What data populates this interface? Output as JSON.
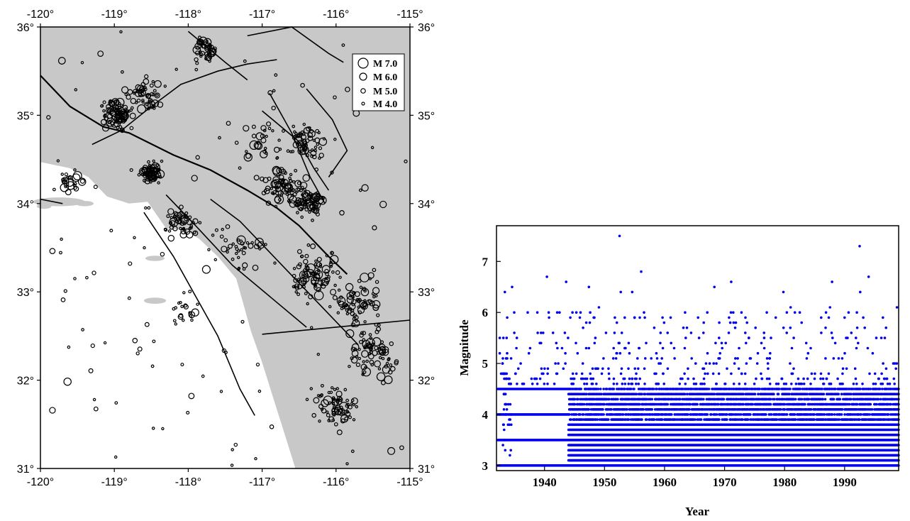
{
  "chart_data": [
    {
      "type": "scatter",
      "kind": "epicenter-map",
      "x_ticks": [
        "-120°",
        "-119°",
        "-118°",
        "-117°",
        "-116°",
        "-115°"
      ],
      "y_ticks": [
        "31°",
        "32°",
        "33°",
        "34°",
        "35°",
        "36°"
      ],
      "xlim": [
        -120,
        -115
      ],
      "ylim": [
        31,
        36
      ],
      "background": {
        "land": "#c8c8c8",
        "sea": "#ffffff"
      },
      "legend": {
        "placement": "top-right",
        "entries": [
          {
            "label": "M 7.0",
            "magnitude": 7.0
          },
          {
            "label": "M 6.0",
            "magnitude": 6.0
          },
          {
            "label": "M 5.0",
            "magnitude": 5.0
          },
          {
            "label": "M 4.0",
            "magnitude": 4.0
          }
        ]
      },
      "clusters": [
        {
          "lon": -118.95,
          "lat": 35.0,
          "n": 90,
          "spread": 0.18
        },
        {
          "lon": -118.6,
          "lat": 35.25,
          "n": 50,
          "spread": 0.18
        },
        {
          "lon": -117.75,
          "lat": 35.75,
          "n": 45,
          "spread": 0.15
        },
        {
          "lon": -118.5,
          "lat": 34.35,
          "n": 70,
          "spread": 0.12
        },
        {
          "lon": -116.75,
          "lat": 34.2,
          "n": 80,
          "spread": 0.25
        },
        {
          "lon": -116.4,
          "lat": 34.0,
          "n": 70,
          "spread": 0.18
        },
        {
          "lon": -116.4,
          "lat": 34.7,
          "n": 60,
          "spread": 0.22
        },
        {
          "lon": -116.3,
          "lat": 33.2,
          "n": 90,
          "spread": 0.3
        },
        {
          "lon": -115.7,
          "lat": 32.9,
          "n": 70,
          "spread": 0.25
        },
        {
          "lon": -115.5,
          "lat": 32.3,
          "n": 80,
          "spread": 0.3
        },
        {
          "lon": -116.0,
          "lat": 31.7,
          "n": 70,
          "spread": 0.25
        },
        {
          "lon": -118.1,
          "lat": 33.8,
          "n": 50,
          "spread": 0.2
        },
        {
          "lon": -117.4,
          "lat": 33.5,
          "n": 40,
          "spread": 0.3
        },
        {
          "lon": -119.6,
          "lat": 34.25,
          "n": 25,
          "spread": 0.15
        },
        {
          "lon": -117.0,
          "lat": 34.7,
          "n": 30,
          "spread": 0.3
        },
        {
          "lon": -118.0,
          "lat": 32.8,
          "n": 20,
          "spread": 0.2
        }
      ]
    },
    {
      "type": "scatter",
      "kind": "magnitude-time",
      "xlabel": "Year",
      "ylabel": "Magnitude",
      "x_ticks": [
        "1940",
        "1950",
        "1960",
        "1970",
        "1980",
        "1990"
      ],
      "y_ticks": [
        "3",
        "4",
        "5",
        "6",
        "7"
      ],
      "xlim": [
        1932,
        1999
      ],
      "ylim": [
        2.9,
        7.7
      ],
      "marker_color": "#0000ee",
      "large_events": [
        {
          "year": 1952.5,
          "mag": 7.5
        },
        {
          "year": 1992.5,
          "mag": 7.3
        },
        {
          "year": 1956.1,
          "mag": 6.8
        },
        {
          "year": 1940.4,
          "mag": 6.7
        },
        {
          "year": 1994.0,
          "mag": 6.7
        },
        {
          "year": 1971.1,
          "mag": 6.6
        },
        {
          "year": 1987.9,
          "mag": 6.6
        },
        {
          "year": 1943.6,
          "mag": 6.6
        },
        {
          "year": 1934.6,
          "mag": 6.5
        },
        {
          "year": 1947.4,
          "mag": 6.5
        },
        {
          "year": 1968.3,
          "mag": 6.5
        },
        {
          "year": 1933.4,
          "mag": 6.4
        },
        {
          "year": 1954.6,
          "mag": 6.4
        },
        {
          "year": 1979.8,
          "mag": 6.4
        },
        {
          "year": 1992.6,
          "mag": 6.4
        },
        {
          "year": 1952.7,
          "mag": 6.4
        },
        {
          "year": 1986.9,
          "mag": 6.0
        },
        {
          "year": 1937.2,
          "mag": 6.0
        },
        {
          "year": 1981.0,
          "mag": 6.1
        },
        {
          "year": 1940.7,
          "mag": 6.0
        },
        {
          "year": 1946.0,
          "mag": 6.0
        }
      ]
    }
  ]
}
